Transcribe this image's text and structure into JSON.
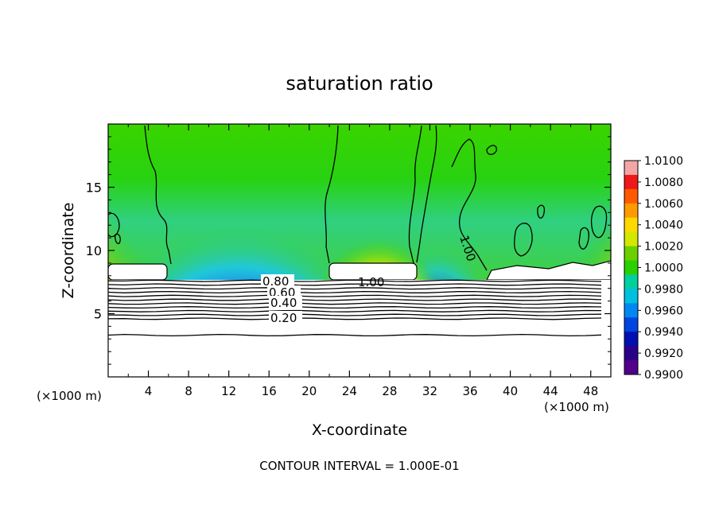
{
  "chart_data": {
    "type": "heatmap",
    "title": "saturation ratio",
    "xlabel": "X-coordinate",
    "ylabel": "Z-coordinate",
    "x_unit": "(×1000 m)",
    "y_unit": "(×1000 m)",
    "x_ticks": [
      "4",
      "8",
      "12",
      "16",
      "20",
      "24",
      "28",
      "32",
      "36",
      "40",
      "44",
      "48"
    ],
    "y_ticks": [
      "5",
      "10",
      "15"
    ],
    "xlim": [
      0,
      50
    ],
    "ylim": [
      0,
      20
    ],
    "colorbar": {
      "labels": [
        "1.0100",
        "1.0080",
        "1.0060",
        "1.0040",
        "1.0020",
        "1.0000",
        "0.9980",
        "0.9960",
        "0.9940",
        "0.9920",
        "0.9900"
      ],
      "colors": [
        "#f2a6a6",
        "#f01818",
        "#ff5a00",
        "#ff9a00",
        "#ffd800",
        "#d2e800",
        "#6ad000",
        "#2ad000",
        "#00d0a0",
        "#00c0e0",
        "#0088f0",
        "#0044e0",
        "#0010b0",
        "#2a0088",
        "#50008a"
      ]
    },
    "contour_labels": [
      "0.80",
      "0.60",
      "0.40",
      "0.20",
      "1.00",
      "1.00"
    ],
    "footer": "CONTOUR INTERVAL = 1.000E-01",
    "x_tick_values": [
      4,
      8,
      12,
      16,
      20,
      24,
      28,
      32,
      36,
      40,
      44,
      48
    ],
    "y_tick_values": [
      5,
      10,
      15
    ],
    "lower_contours_z": [
      7.6,
      7.3,
      7.0,
      6.7,
      6.4,
      6.1,
      5.8,
      5.5,
      5.2,
      4.9,
      4.6,
      3.3
    ]
  }
}
